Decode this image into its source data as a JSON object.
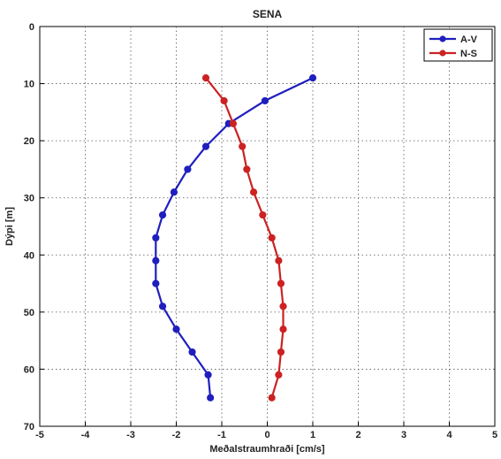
{
  "chart_data": {
    "type": "line",
    "title": "SENA",
    "xlabel": "Meðalstraumhraði [cm/s]",
    "ylabel": "Dýpi [m]",
    "xlim": [
      -5,
      5
    ],
    "ylim": [
      0,
      70
    ],
    "y_reversed": true,
    "grid": true,
    "legend_position": "top-right",
    "xticks": [
      "-5",
      "-4",
      "-3",
      "-2",
      "-1",
      "0",
      "1",
      "2",
      "3",
      "4",
      "5"
    ],
    "yticks": [
      "0",
      "10",
      "20",
      "30",
      "40",
      "50",
      "60",
      "70"
    ],
    "series": [
      {
        "name": "A-V",
        "color": "#1f1fbf",
        "points": [
          {
            "x": 1.0,
            "y": 9
          },
          {
            "x": -0.05,
            "y": 13
          },
          {
            "x": -0.85,
            "y": 17
          },
          {
            "x": -1.35,
            "y": 21
          },
          {
            "x": -1.75,
            "y": 25
          },
          {
            "x": -2.05,
            "y": 29
          },
          {
            "x": -2.3,
            "y": 33
          },
          {
            "x": -2.45,
            "y": 37
          },
          {
            "x": -2.45,
            "y": 41
          },
          {
            "x": -2.45,
            "y": 45
          },
          {
            "x": -2.3,
            "y": 49
          },
          {
            "x": -2.0,
            "y": 53
          },
          {
            "x": -1.65,
            "y": 57
          },
          {
            "x": -1.3,
            "y": 61
          },
          {
            "x": -1.25,
            "y": 65
          }
        ]
      },
      {
        "name": "N-S",
        "color": "#cc2222",
        "points": [
          {
            "x": -1.35,
            "y": 9
          },
          {
            "x": -0.95,
            "y": 13
          },
          {
            "x": -0.75,
            "y": 17
          },
          {
            "x": -0.55,
            "y": 21
          },
          {
            "x": -0.45,
            "y": 25
          },
          {
            "x": -0.3,
            "y": 29
          },
          {
            "x": -0.1,
            "y": 33
          },
          {
            "x": 0.1,
            "y": 37
          },
          {
            "x": 0.25,
            "y": 41
          },
          {
            "x": 0.3,
            "y": 45
          },
          {
            "x": 0.35,
            "y": 49
          },
          {
            "x": 0.35,
            "y": 53
          },
          {
            "x": 0.3,
            "y": 57
          },
          {
            "x": 0.25,
            "y": 61
          },
          {
            "x": 0.1,
            "y": 65
          }
        ]
      }
    ]
  }
}
